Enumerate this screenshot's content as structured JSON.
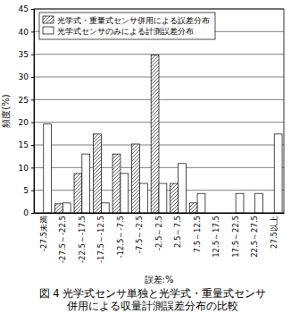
{
  "chart_data": {
    "type": "bar",
    "title": "図 4 光学式センサ単独と光学式・重量式センサ\n併用による収量計測誤差分布の比較",
    "x_label": "誤差:%",
    "y_label": "頻度(%)",
    "categories": [
      "-27.5未満",
      "-27.5～-22.5",
      "-22.5～-17.5",
      "-17.5～-12.5",
      "-12.5～-7.5",
      "-7.5～-2.5",
      "-2.5～2.5",
      "2.5～7.5",
      "7.5～12.5",
      "12.5～17.5",
      "17.5～22.5",
      "22.5～27.5",
      "27.5以上"
    ],
    "series": [
      {
        "name": "光学式・重量式センサ併用による誤差分布",
        "color": "#555555",
        "values": [
          0,
          2,
          8.7,
          17.4,
          13,
          15.2,
          34.8,
          6.5,
          2.2,
          0,
          0,
          0,
          0
        ]
      },
      {
        "name": "光学式センサのみによる計測誤差分布",
        "color": "#ffffff",
        "values": [
          19.6,
          2.2,
          13,
          2.2,
          8.7,
          6.5,
          6.5,
          10.9,
          4.3,
          0,
          4.3,
          4.3,
          17.4
        ]
      }
    ],
    "ylim": [
      0,
      45
    ],
    "yticks": [
      0,
      5,
      10,
      15,
      20,
      25,
      30,
      35,
      40,
      45
    ],
    "grid": true,
    "legend": "upper left"
  }
}
